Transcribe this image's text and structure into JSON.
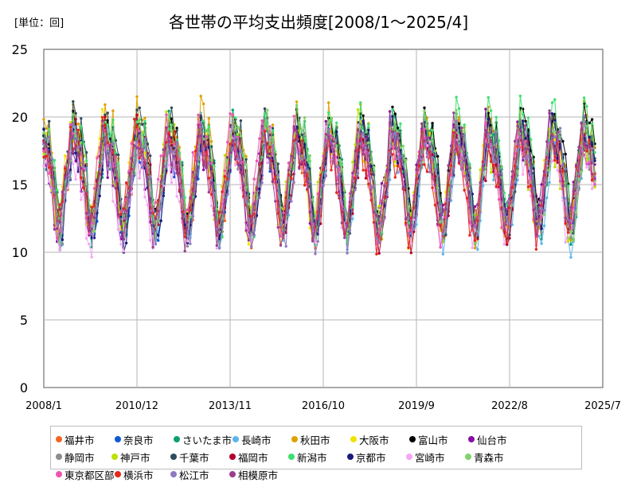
{
  "header": {
    "unit": "[単位：回]"
  },
  "colors": {
    "grid": "#b5b5b5",
    "axis": "#555555"
  },
  "chart_data": {
    "type": "line",
    "title": "各世帯の平均支出頻度[2008/1～2025/4]",
    "xlabel": "",
    "ylabel": "",
    "ylim": [
      0,
      25
    ],
    "yticks": [
      0,
      5,
      10,
      15,
      20,
      25
    ],
    "xlim": [
      "2008/1",
      "2025/7"
    ],
    "xticks": [
      "2008/1",
      "2010/12",
      "2013/11",
      "2016/10",
      "2019/9",
      "2022/8",
      "2025/7"
    ],
    "grid": true,
    "legend_position": "bottom",
    "note": "Monthly series (2008/1–2025/4); values show a strong seasonal pattern with peaks around December–March (~19–22) and troughs around June–August (~11–13).",
    "series": [
      {
        "name": "福井市",
        "color": "#f26522",
        "base": 15.2,
        "amp": 3.4,
        "phase": 0.0
      },
      {
        "name": "奈良市",
        "color": "#0a5ad8",
        "base": 15.0,
        "amp": 3.3,
        "phase": 0.1
      },
      {
        "name": "さいたま市",
        "color": "#0d9f6e",
        "base": 15.3,
        "amp": 3.5,
        "phase": 0.2
      },
      {
        "name": "長崎市",
        "color": "#5bb6f0",
        "base": 14.6,
        "amp": 3.6,
        "phase": 0.05
      },
      {
        "name": "秋田市",
        "color": "#e0a100",
        "base": 15.8,
        "amp": 3.9,
        "phase": 0.15
      },
      {
        "name": "大阪市",
        "color": "#f3e200",
        "base": 15.4,
        "amp": 3.6,
        "phase": 0.25
      },
      {
        "name": "富山市",
        "color": "#000000",
        "base": 16.1,
        "amp": 3.4,
        "phase": -0.1
      },
      {
        "name": "仙台市",
        "color": "#8a0fa1",
        "base": 15.1,
        "amp": 3.3,
        "phase": 0.3
      },
      {
        "name": "静岡市",
        "color": "#8c8c8c",
        "base": 14.9,
        "amp": 3.2,
        "phase": 0.0
      },
      {
        "name": "神戸市",
        "color": "#bfe000",
        "base": 15.2,
        "amp": 3.4,
        "phase": 0.35
      },
      {
        "name": "千葉市",
        "color": "#2e4b5c",
        "base": 15.6,
        "amp": 3.5,
        "phase": 0.12
      },
      {
        "name": "福岡市",
        "color": "#b0002e",
        "base": 15.0,
        "amp": 3.3,
        "phase": 0.22
      },
      {
        "name": "新潟市",
        "color": "#3ce070",
        "base": 16.0,
        "amp": 3.8,
        "phase": 0.08
      },
      {
        "name": "京都市",
        "color": "#1a1a7a",
        "base": 15.1,
        "amp": 3.4,
        "phase": 0.18
      },
      {
        "name": "宮崎市",
        "color": "#f4a6f4",
        "base": 14.2,
        "amp": 3.5,
        "phase": 0.28
      },
      {
        "name": "青森市",
        "color": "#7fd36a",
        "base": 15.5,
        "amp": 3.6,
        "phase": 0.02
      },
      {
        "name": "東京都区部",
        "color": "#ee55b0",
        "base": 15.3,
        "amp": 3.4,
        "phase": 0.4
      },
      {
        "name": "横浜市",
        "color": "#e8261a",
        "base": 14.9,
        "amp": 3.3,
        "phase": 0.33
      },
      {
        "name": "松江市",
        "color": "#8d7ac0",
        "base": 15.0,
        "amp": 3.5,
        "phase": 0.06
      },
      {
        "name": "相模原市",
        "color": "#9d3d8f",
        "base": 15.1,
        "amp": 3.4,
        "phase": 0.26
      }
    ]
  }
}
